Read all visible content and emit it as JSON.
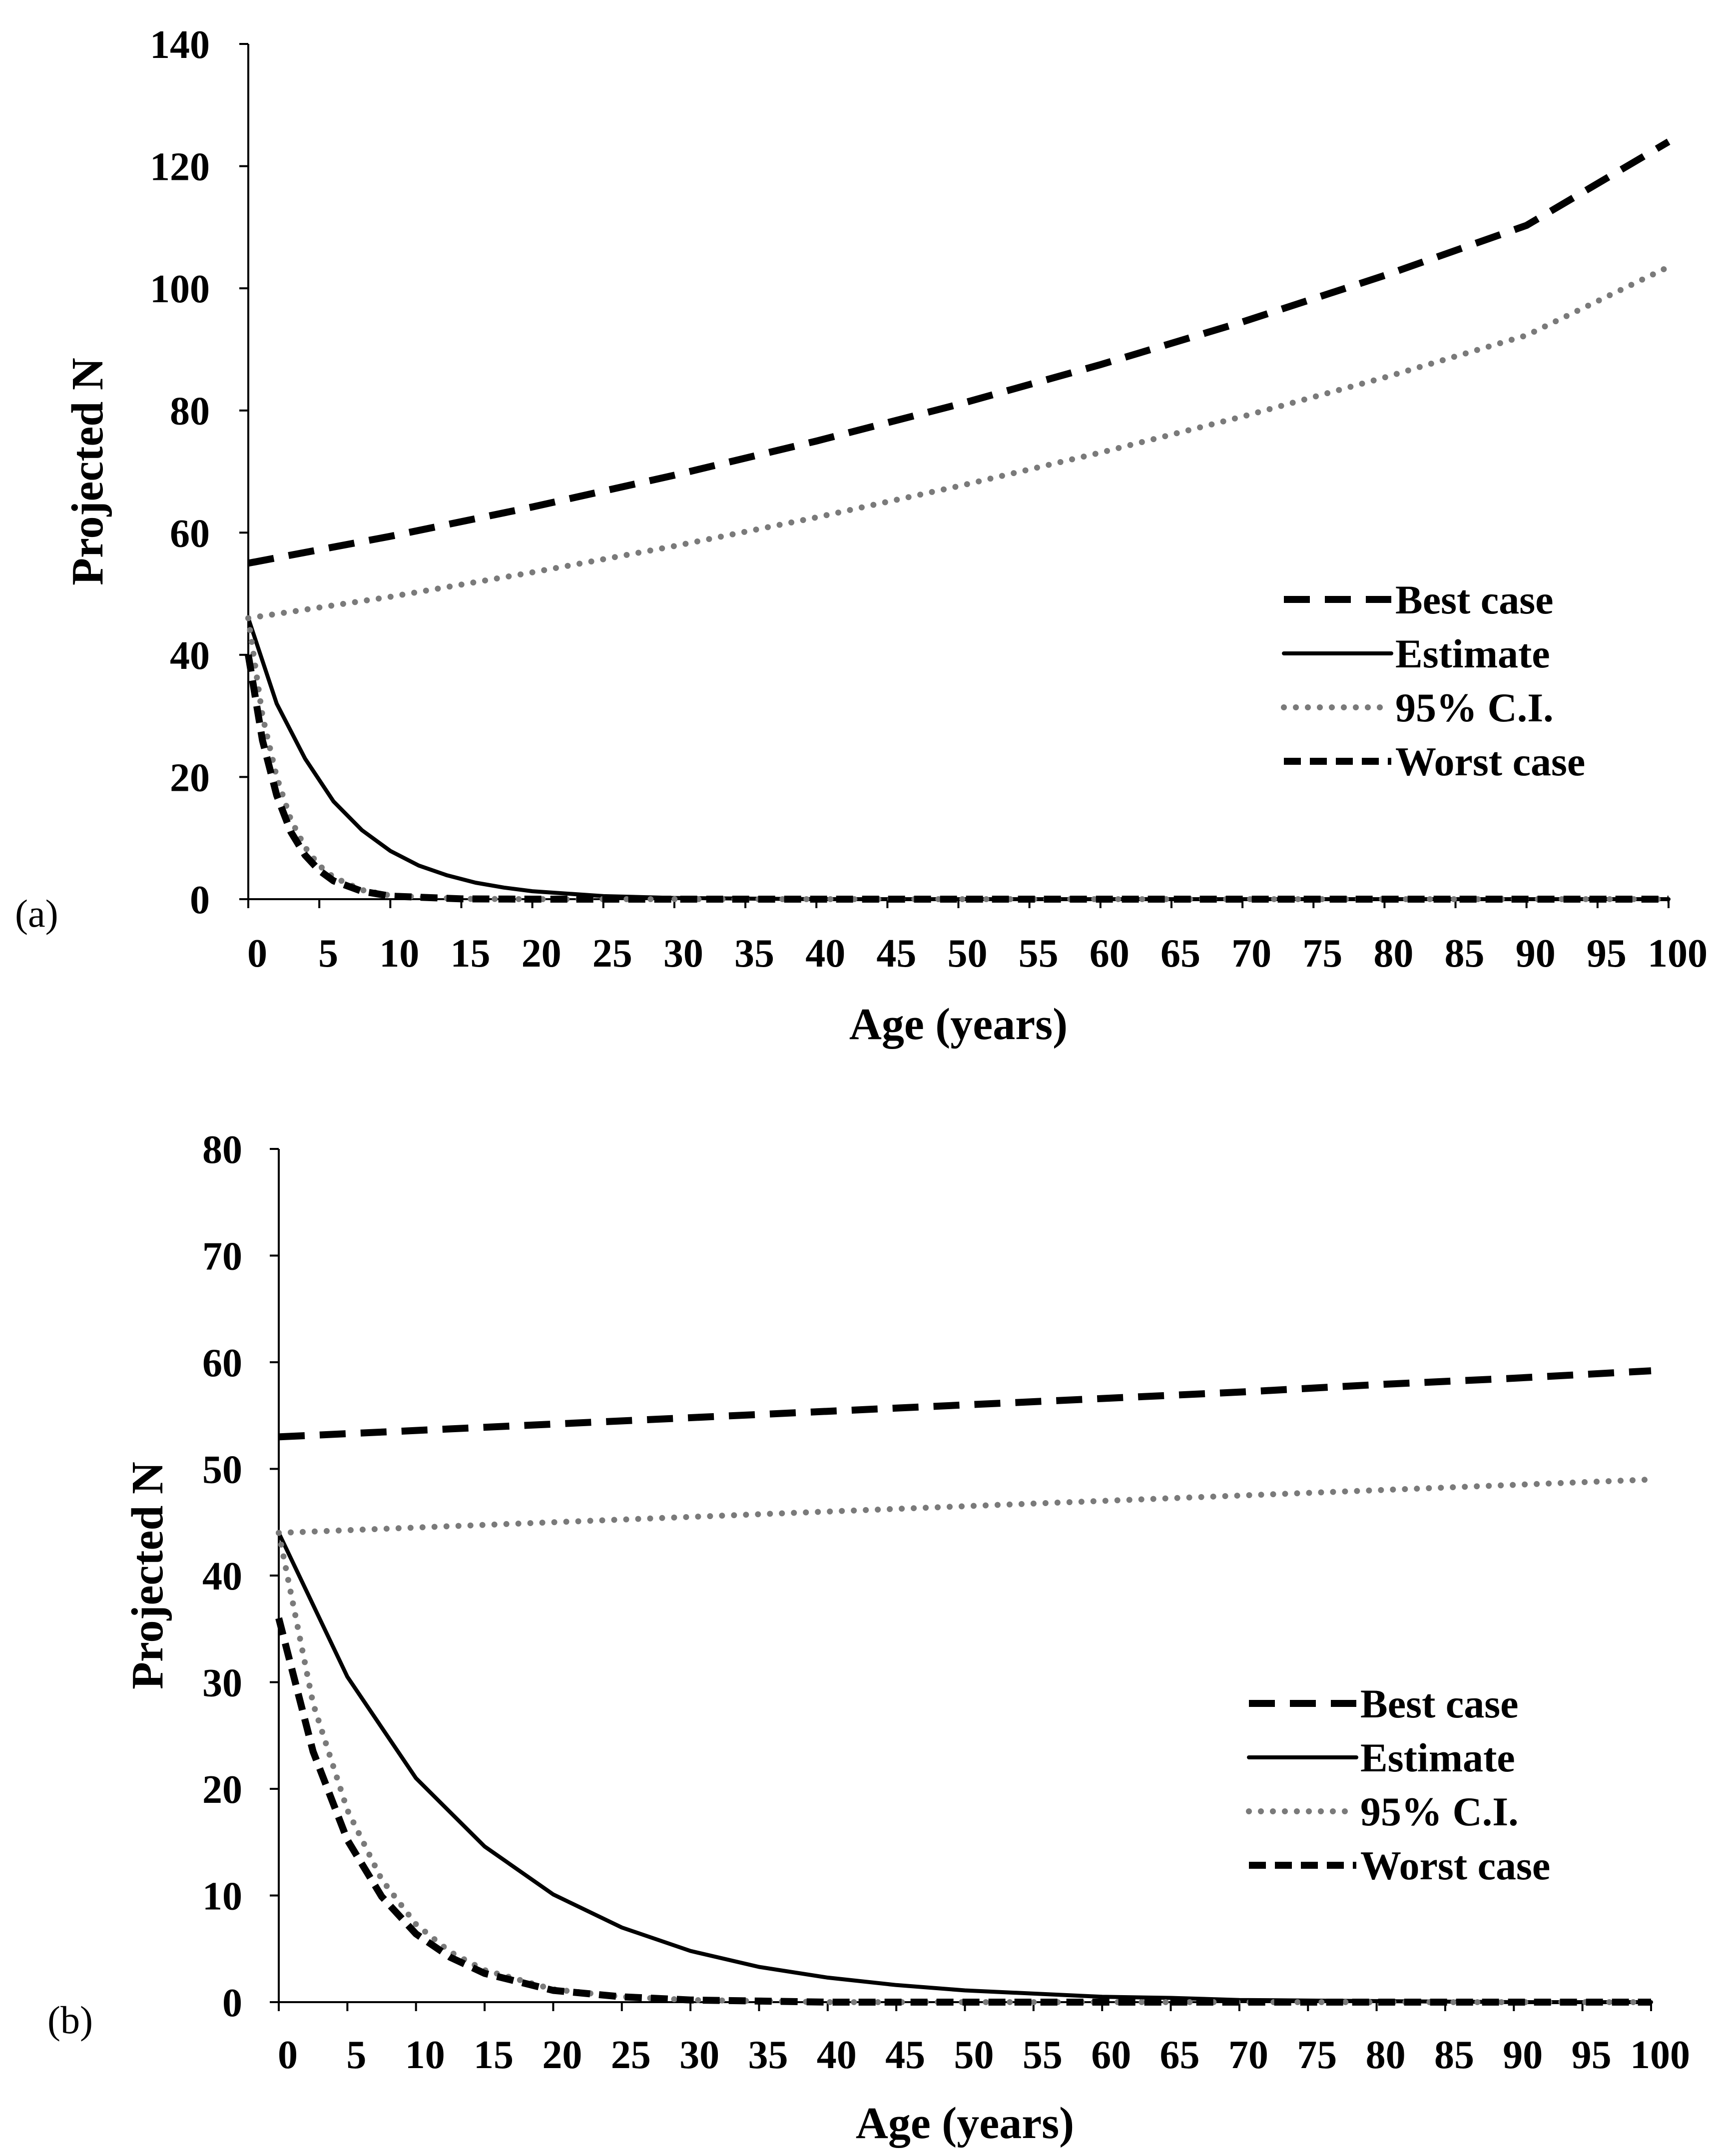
{
  "chart_data": [
    {
      "type": "line",
      "panel_label": "(a)",
      "xlabel": "Age (years)",
      "ylabel": "Projected N",
      "xlim": [
        0,
        100
      ],
      "ylim": [
        0,
        140
      ],
      "x_ticks": [
        0,
        5,
        10,
        15,
        20,
        25,
        30,
        35,
        40,
        45,
        50,
        55,
        60,
        65,
        70,
        75,
        80,
        85,
        90,
        95,
        100
      ],
      "y_ticks": [
        0,
        20,
        40,
        60,
        80,
        100,
        120,
        140
      ],
      "legend_position": "right-middle",
      "series": [
        {
          "name": "Best case",
          "style": "dashed",
          "color": "#000000",
          "x": [
            0,
            10,
            20,
            30,
            40,
            50,
            60,
            70,
            80,
            90,
            100
          ],
          "values": [
            55,
            59.4,
            64.2,
            69.4,
            75.0,
            81.0,
            87.5,
            94.5,
            102.1,
            110.3,
            124
          ]
        },
        {
          "name": "Estimate",
          "style": "solid",
          "color": "#000000",
          "x": [
            0,
            2,
            4,
            6,
            8,
            10,
            12,
            14,
            16,
            18,
            20,
            25,
            30,
            40,
            50,
            60,
            70,
            80,
            90,
            100
          ],
          "values": [
            46,
            32,
            23,
            16,
            11.3,
            7.9,
            5.5,
            3.9,
            2.7,
            1.9,
            1.3,
            0.5,
            0.2,
            0,
            0,
            0,
            0,
            0,
            0,
            0
          ]
        },
        {
          "name": "95% C.I.",
          "style": "dotted",
          "color": "#7a7a7a",
          "x": [
            0,
            10,
            20,
            30,
            40,
            50,
            60,
            70,
            80,
            90,
            100
          ],
          "values": [
            46,
            49.5,
            53.5,
            57.8,
            62.5,
            67.6,
            73.1,
            79.0,
            85.4,
            92.3,
            103.5
          ]
        },
        {
          "name": "95% C.I. (lower)",
          "style": "dotted",
          "color": "#7a7a7a",
          "legend": false,
          "x": [
            0,
            1,
            2,
            3,
            4,
            5,
            6,
            8,
            10,
            15,
            20,
            30,
            50,
            100
          ],
          "values": [
            46,
            30,
            20,
            13,
            8.5,
            5.5,
            3.6,
            1.5,
            0.6,
            0.05,
            0,
            0,
            0,
            0
          ]
        },
        {
          "name": "Worst case",
          "style": "shortdash",
          "color": "#000000",
          "x": [
            0,
            1,
            2,
            3,
            4,
            5,
            6,
            8,
            10,
            15,
            20,
            30,
            50,
            100
          ],
          "values": [
            40,
            26,
            17,
            11,
            7.2,
            4.7,
            3.0,
            1.3,
            0.5,
            0.05,
            0,
            0,
            0,
            0
          ]
        }
      ]
    },
    {
      "type": "line",
      "panel_label": "(b)",
      "xlabel": "Age (years)",
      "ylabel": "Projected N",
      "xlim": [
        0,
        100
      ],
      "ylim": [
        0,
        80
      ],
      "x_ticks": [
        0,
        5,
        10,
        15,
        20,
        25,
        30,
        35,
        40,
        45,
        50,
        55,
        60,
        65,
        70,
        75,
        80,
        85,
        90,
        95,
        100
      ],
      "y_ticks": [
        0,
        10,
        20,
        30,
        40,
        50,
        60,
        70,
        80
      ],
      "legend_position": "right-lower",
      "series": [
        {
          "name": "Best case",
          "style": "dashed",
          "color": "#000000",
          "x": [
            0,
            10,
            20,
            30,
            40,
            50,
            60,
            70,
            80,
            90,
            100
          ],
          "values": [
            53,
            53.6,
            54.2,
            54.8,
            55.4,
            56.0,
            56.6,
            57.2,
            57.9,
            58.5,
            59.2
          ]
        },
        {
          "name": "Estimate",
          "style": "solid",
          "color": "#000000",
          "x": [
            0,
            5,
            10,
            15,
            20,
            25,
            30,
            35,
            40,
            45,
            50,
            55,
            60,
            65,
            70,
            80,
            90,
            100
          ],
          "values": [
            44,
            30.5,
            21.0,
            14.6,
            10.1,
            7.0,
            4.8,
            3.3,
            2.3,
            1.6,
            1.1,
            0.8,
            0.5,
            0.4,
            0.2,
            0.1,
            0,
            0
          ]
        },
        {
          "name": "95% C.I.",
          "style": "dotted",
          "color": "#7a7a7a",
          "x": [
            0,
            10,
            20,
            30,
            40,
            50,
            60,
            70,
            80,
            90,
            100
          ],
          "values": [
            44,
            44.5,
            45.0,
            45.5,
            46.0,
            46.5,
            47.0,
            47.5,
            48.0,
            48.5,
            49.0
          ]
        },
        {
          "name": "95% C.I. (lower)",
          "style": "dotted",
          "color": "#7a7a7a",
          "legend": false,
          "x": [
            0,
            2.5,
            5,
            7.5,
            10,
            12.5,
            15,
            20,
            25,
            30,
            40,
            60,
            100
          ],
          "values": [
            44,
            28,
            18,
            11.5,
            7.3,
            4.7,
            3.0,
            1.2,
            0.5,
            0.2,
            0,
            0,
            0
          ]
        },
        {
          "name": "Worst case",
          "style": "shortdash",
          "color": "#000000",
          "x": [
            0,
            2.5,
            5,
            7.5,
            10,
            12.5,
            15,
            20,
            25,
            30,
            40,
            60,
            100
          ],
          "values": [
            36,
            23.5,
            15.2,
            9.9,
            6.4,
            4.2,
            2.7,
            1.1,
            0.5,
            0.2,
            0,
            0,
            0
          ]
        }
      ]
    }
  ]
}
